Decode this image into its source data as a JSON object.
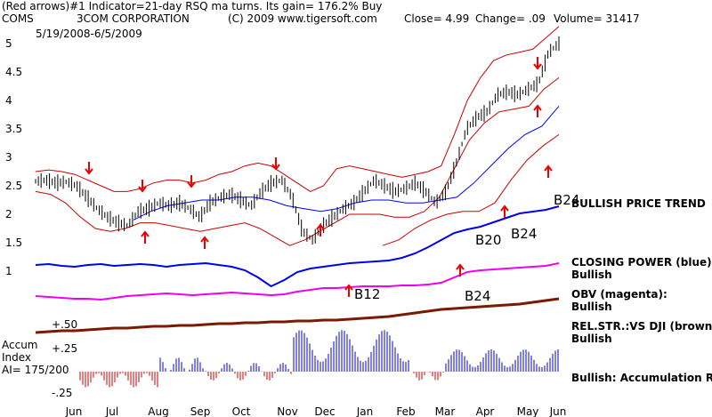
{
  "header": {
    "line1": "(Red arrows)#1 Indicator=21-day RSQ ma turns. Its gain= 176.2% Buy",
    "symbol": "COMS",
    "company": "3COM CORPORATION",
    "copyright": "(C) 2009 www.tigersoft.com",
    "close": "Close=  4.99",
    "change": "Change= .09",
    "volume": "Volume= 31417",
    "date_range": "5/19/2008-6/5/2009"
  },
  "labels": {
    "bullish_price_trend": "BULLISH PRICE TREND",
    "closing_power": "CLOSING POWER (blue):",
    "closing_power_status": "Bullish",
    "obv": "OBV (magenta):",
    "obv_status": "Bullish",
    "relstr": "REL.STR.:VS DJI (brown):",
    "relstr_status": "Bullish",
    "accum_line1": "Accum",
    "accum_line2": "Index",
    "accum_ai": "AI= 175/200",
    "accum_status": "Bullish: Accumulation Rising",
    "plus50": "+.50",
    "plus25": "+.25",
    "minus25": "-.25"
  },
  "markers": {
    "b12": "B12",
    "b20": "B20",
    "b24_price_a": "B24",
    "b24_price_b": "B24",
    "b24_obv": "B24"
  },
  "colors": {
    "price": "#000000",
    "bands": "#cc0000",
    "ma": "#0000ff",
    "closing_power": "#0000ee",
    "obv": "#ee00ee",
    "relstr": "#7a1a00",
    "accum_pos": "#0000cc",
    "accum_neg": "#cc0000",
    "arrows": "#ee0000"
  },
  "chart_data": {
    "type": "line",
    "y_ticks": [
      "5",
      "4.5",
      "4",
      "3.5",
      "3",
      "2.5",
      "2",
      "1.5",
      "1"
    ],
    "x_ticks": [
      "Jun",
      "Jul",
      "Aug",
      "Sep",
      "Oct",
      "Nov",
      "Dec",
      "Jan",
      "Feb",
      "Mar",
      "Apr",
      "May",
      "Jun"
    ],
    "ylim": [
      1,
      5
    ],
    "price_series": [
      2.58,
      2.6,
      2.55,
      2.57,
      2.5,
      2.3,
      2.1,
      1.95,
      1.85,
      1.8,
      2.05,
      2.1,
      2.2,
      2.15,
      2.2,
      2.1,
      1.95,
      2.2,
      2.3,
      2.35,
      2.25,
      2.15,
      2.4,
      2.55,
      2.6,
      2.3,
      1.7,
      1.55,
      1.8,
      1.95,
      2.1,
      2.2,
      2.4,
      2.6,
      2.5,
      2.4,
      2.45,
      2.55,
      2.4,
      2.2,
      2.4,
      2.9,
      3.5,
      3.7,
      3.8,
      4.1,
      4.15,
      4.1,
      4.2,
      4.3,
      4.85,
      5.0
    ],
    "upper_band": [
      2.75,
      2.78,
      2.75,
      2.7,
      2.6,
      2.5,
      2.4,
      2.4,
      2.45,
      2.55,
      2.6,
      2.6,
      2.55,
      2.6,
      2.7,
      2.75,
      2.85,
      2.9,
      2.85,
      2.7,
      2.55,
      2.4,
      2.5,
      2.8,
      2.85,
      2.8,
      2.75,
      2.7,
      2.65,
      2.7,
      2.75,
      2.85,
      3.4,
      4.0,
      4.4,
      4.7,
      4.8,
      4.85,
      4.9,
      5.1,
      5.3
    ],
    "lower_band": [
      2.4,
      2.35,
      2.2,
      1.95,
      1.75,
      1.7,
      1.75,
      1.85,
      1.85,
      1.8,
      1.75,
      1.7,
      1.75,
      1.8,
      1.85,
      1.75,
      1.6,
      1.45,
      1.55,
      1.7,
      1.85,
      2.0,
      2.0,
      2.0,
      1.95,
      1.95,
      2.05,
      2.3,
      2.8,
      3.3,
      3.6,
      3.8,
      3.85,
      3.9,
      4.2,
      4.4
    ],
    "moving_average": [
      1.9,
      2.05,
      2.15,
      2.2,
      2.25,
      2.25,
      2.3,
      2.3,
      2.25,
      2.15,
      2.1,
      2.05,
      2.1,
      2.2,
      2.25,
      2.25,
      2.2,
      2.2,
      2.25,
      2.3,
      2.55,
      2.85,
      3.15,
      3.4,
      3.55,
      3.9
    ],
    "lower_ma": [
      1.45,
      1.55,
      1.75,
      1.9,
      2.0,
      2.05,
      2.05,
      2.2,
      2.6,
      2.95,
      3.2,
      3.4
    ]
  }
}
